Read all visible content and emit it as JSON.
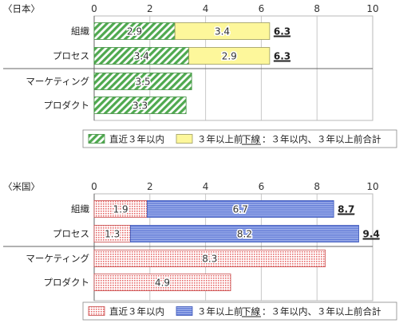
{
  "chart_data": [
    {
      "type": "bar",
      "orientation": "horizontal",
      "stacked": true,
      "region": "〈日本〉",
      "categories": [
        "組織",
        "プロセス",
        "マーケティング",
        "プロダクト"
      ],
      "xlim": [
        0,
        10
      ],
      "xticks": [
        "0",
        "2",
        "4",
        "6",
        "8",
        "10"
      ],
      "grid": true,
      "series": [
        {
          "name": "直近３年以内",
          "values": [
            2.9,
            3.4,
            3.5,
            3.3
          ],
          "labels": [
            "2.9",
            "3.4",
            "3.5",
            "3.3"
          ],
          "pattern": "diagonal-hatch",
          "color": "#5cae5c"
        },
        {
          "name": "３年以上前",
          "values": [
            3.4,
            2.9,
            0,
            0
          ],
          "labels": [
            "3.4",
            "2.9",
            "",
            ""
          ],
          "pattern": "solid",
          "color": "#fdf79b"
        }
      ],
      "totals": [
        "6.3",
        "6.3",
        "",
        ""
      ],
      "legend": {
        "position": "bottom",
        "note": "：３年以内、３年以上前合計",
        "note_prefix": "下線"
      }
    },
    {
      "type": "bar",
      "orientation": "horizontal",
      "stacked": true,
      "region": "〈米国〉",
      "categories": [
        "組織",
        "プロセス",
        "マーケティング",
        "プロダクト"
      ],
      "xlim": [
        0,
        10
      ],
      "xticks": [
        "0",
        "2",
        "4",
        "6",
        "8",
        "10"
      ],
      "grid": true,
      "series": [
        {
          "name": "直近３年以内",
          "values": [
            1.9,
            1.3,
            8.3,
            4.9
          ],
          "labels": [
            "1.9",
            "1.3",
            "8.3",
            "4.9"
          ],
          "pattern": "dotted",
          "color": "#e66b6b"
        },
        {
          "name": "３年以上前",
          "values": [
            6.7,
            8.2,
            0,
            0
          ],
          "labels": [
            "6.7",
            "8.2",
            "",
            ""
          ],
          "pattern": "horizontal-lines",
          "color": "#5a74d6"
        }
      ],
      "totals": [
        "8.7",
        "9.4",
        "",
        ""
      ],
      "legend": {
        "position": "bottom",
        "note": "：３年以内、３年以上前合計",
        "note_prefix": "下線"
      }
    }
  ]
}
